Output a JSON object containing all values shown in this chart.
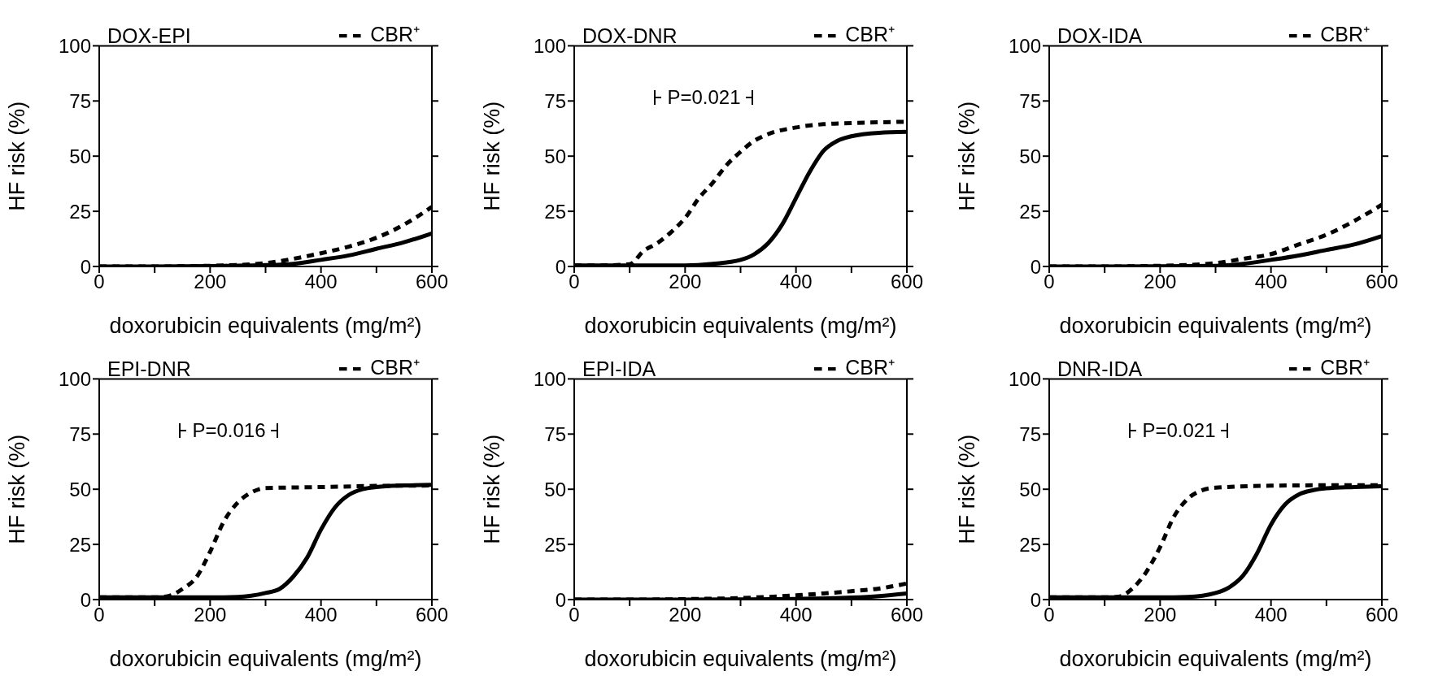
{
  "chart_data": [
    {
      "type": "line",
      "title": "DOX-EPI",
      "xlabel": "doxorubicin equivalents (mg/m²)",
      "ylabel": "HF risk (%)",
      "legend": "top right",
      "marker": "none",
      "xlim": [
        0,
        600
      ],
      "ylim": [
        0,
        100
      ],
      "xticks": [
        0,
        {
          "value": 100,
          "label": null
        },
        200,
        {
          "value": 300,
          "label": null
        },
        400,
        {
          "value": 500,
          "label": null
        },
        600
      ],
      "yticks": [
        0,
        25,
        50,
        75,
        100
      ],
      "series": [
        {
          "color": "#000000",
          "line_style": "solid",
          "x": [
            0,
            100,
            200,
            300,
            350,
            400,
            450,
            500,
            550,
            600
          ],
          "values": [
            0,
            0,
            0.2,
            0.6,
            1.2,
            3,
            5,
            8,
            11,
            15
          ]
        },
        {
          "name": "CBR⁺",
          "color": "#000000",
          "line_style": "dashed",
          "x": [
            0,
            100,
            200,
            300,
            350,
            400,
            450,
            500,
            550,
            600
          ],
          "values": [
            0,
            0,
            0.3,
            1.5,
            3.5,
            6,
            9,
            13,
            19,
            27
          ]
        }
      ]
    },
    {
      "type": "line",
      "title": "DOX-DNR",
      "xlabel": "doxorubicin equivalents (mg/m²)",
      "ylabel": "HF risk (%)",
      "legend": "top right",
      "marker": "none",
      "xlim": [
        0,
        600
      ],
      "ylim": [
        0,
        100
      ],
      "xticks": [
        0,
        {
          "value": 100,
          "label": null
        },
        200,
        {
          "value": 300,
          "label": null
        },
        400,
        {
          "value": 500,
          "label": null
        },
        600
      ],
      "yticks": [
        0,
        25,
        50,
        75,
        100
      ],
      "annotations": [
        "P=0.021"
      ],
      "series": [
        {
          "color": "#000000",
          "line_style": "solid",
          "x": [
            0,
            100,
            200,
            250,
            300,
            325,
            350,
            375,
            400,
            425,
            450,
            475,
            500,
            550,
            600
          ],
          "values": [
            0.5,
            0.5,
            0.5,
            1.2,
            3,
            5.6,
            10.6,
            19,
            31,
            43,
            52.5,
            57,
            59,
            60.6,
            61
          ]
        },
        {
          "name": "CBR⁺",
          "color": "#000000",
          "line_style": "dashed",
          "x": [
            0,
            50,
            100,
            125,
            150,
            175,
            200,
            225,
            250,
            275,
            300,
            325,
            350,
            400,
            450,
            500,
            600
          ],
          "values": [
            0.5,
            0.5,
            1,
            7,
            10.6,
            15.6,
            22,
            31,
            38,
            46,
            52,
            57,
            60,
            63,
            64.5,
            65,
            65.6
          ]
        }
      ]
    },
    {
      "type": "line",
      "title": "DOX-IDA",
      "xlabel": "doxorubicin equivalents (mg/m²)",
      "ylabel": "HF risk (%)",
      "legend": "top right",
      "marker": "none",
      "xlim": [
        0,
        600
      ],
      "ylim": [
        0,
        100
      ],
      "xticks": [
        0,
        {
          "value": 100,
          "label": null
        },
        200,
        {
          "value": 300,
          "label": null
        },
        400,
        {
          "value": 500,
          "label": null
        },
        600
      ],
      "yticks": [
        0,
        25,
        50,
        75,
        100
      ],
      "series": [
        {
          "color": "#000000",
          "line_style": "solid",
          "x": [
            0,
            100,
            200,
            300,
            350,
            400,
            450,
            500,
            550,
            600
          ],
          "values": [
            0,
            0,
            0.1,
            0.3,
            1.2,
            3,
            5,
            7.5,
            10,
            13.8
          ]
        },
        {
          "name": "CBR⁺",
          "color": "#000000",
          "line_style": "dashed",
          "x": [
            0,
            100,
            200,
            300,
            350,
            400,
            450,
            500,
            550,
            600
          ],
          "values": [
            0,
            0,
            0.3,
            1.5,
            3.5,
            5.6,
            10,
            14.4,
            20.6,
            28
          ]
        }
      ]
    },
    {
      "type": "line",
      "title": "EPI-DNR",
      "xlabel": "doxorubicin equivalents (mg/m²)",
      "ylabel": "HF risk (%)",
      "legend": "top right",
      "marker": "none",
      "xlim": [
        0,
        600
      ],
      "ylim": [
        0,
        100
      ],
      "xticks": [
        0,
        {
          "value": 100,
          "label": null
        },
        200,
        {
          "value": 300,
          "label": null
        },
        400,
        {
          "value": 500,
          "label": null
        },
        600
      ],
      "yticks": [
        0,
        25,
        50,
        75,
        100
      ],
      "annotations": [
        "P=0.016"
      ],
      "series": [
        {
          "color": "#000000",
          "line_style": "solid",
          "x": [
            0,
            100,
            200,
            250,
            300,
            325,
            350,
            375,
            400,
            425,
            450,
            475,
            500,
            550,
            600
          ],
          "values": [
            1,
            1,
            1,
            1.2,
            3,
            4.8,
            10.4,
            19,
            31.7,
            41.7,
            47.4,
            50,
            51,
            51.7,
            52
          ]
        },
        {
          "name": "CBR⁺",
          "color": "#000000",
          "line_style": "dashed",
          "x": [
            0,
            50,
            100,
            125,
            150,
            175,
            200,
            225,
            250,
            275,
            300,
            400,
            500,
            600
          ],
          "values": [
            1,
            1,
            1,
            1.6,
            4.8,
            10,
            21.7,
            35.5,
            44,
            48.6,
            50.5,
            51,
            51.5,
            51.7
          ]
        }
      ]
    },
    {
      "type": "line",
      "title": "EPI-IDA",
      "xlabel": "doxorubicin equivalents (mg/m²)",
      "ylabel": "HF risk (%)",
      "legend": "top right",
      "marker": "none",
      "xlim": [
        0,
        600
      ],
      "ylim": [
        0,
        100
      ],
      "xticks": [
        0,
        {
          "value": 100,
          "label": null
        },
        200,
        {
          "value": 300,
          "label": null
        },
        400,
        {
          "value": 500,
          "label": null
        },
        600
      ],
      "yticks": [
        0,
        25,
        50,
        75,
        100
      ],
      "series": [
        {
          "color": "#000000",
          "line_style": "solid",
          "x": [
            0,
            100,
            200,
            300,
            400,
            500,
            550,
            600
          ],
          "values": [
            0,
            0,
            0,
            0.1,
            0.3,
            0.9,
            1.6,
            2.8
          ]
        },
        {
          "name": "CBR⁺",
          "color": "#000000",
          "line_style": "dashed",
          "x": [
            0,
            100,
            200,
            300,
            400,
            450,
            500,
            550,
            600
          ],
          "values": [
            0,
            0,
            0.2,
            0.7,
            1.9,
            2.8,
            3.8,
            5,
            7.3
          ]
        }
      ]
    },
    {
      "type": "line",
      "title": "DNR-IDA",
      "xlabel": "doxorubicin equivalents (mg/m²)",
      "ylabel": "HF risk (%)",
      "legend": "top right",
      "marker": "none",
      "xlim": [
        0,
        600
      ],
      "ylim": [
        0,
        100
      ],
      "xticks": [
        0,
        {
          "value": 100,
          "label": null
        },
        200,
        {
          "value": 300,
          "label": null
        },
        400,
        {
          "value": 500,
          "label": null
        },
        600
      ],
      "yticks": [
        0,
        25,
        50,
        75,
        100
      ],
      "annotations": [
        "P=0.021"
      ],
      "series": [
        {
          "color": "#000000",
          "line_style": "solid",
          "x": [
            0,
            100,
            200,
            250,
            300,
            325,
            350,
            375,
            400,
            425,
            450,
            475,
            500,
            550,
            600
          ],
          "values": [
            1,
            1,
            1,
            1.2,
            3,
            5.6,
            11,
            21,
            34,
            43,
            47.6,
            49.5,
            50.4,
            51,
            51.4
          ]
        },
        {
          "name": "CBR⁺",
          "color": "#000000",
          "line_style": "dashed",
          "x": [
            0,
            50,
            100,
            125,
            150,
            175,
            200,
            225,
            250,
            275,
            300,
            400,
            500,
            600
          ],
          "values": [
            1,
            1,
            1,
            1.3,
            5,
            12.5,
            23.8,
            37.6,
            45.7,
            49.5,
            50.7,
            51.6,
            51.8,
            51.8
          ]
        }
      ]
    }
  ]
}
